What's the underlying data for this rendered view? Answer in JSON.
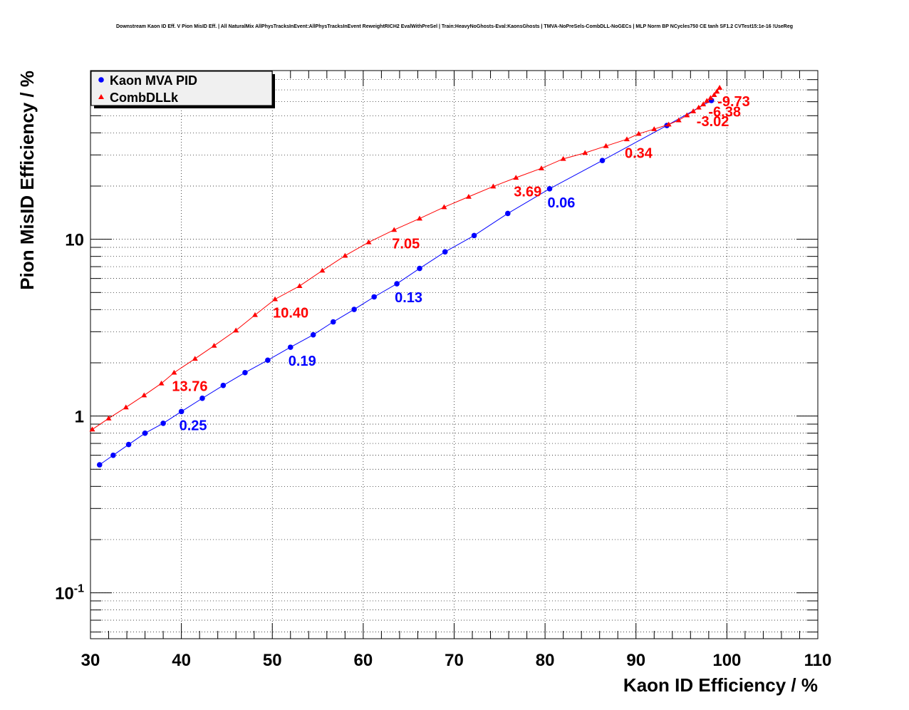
{
  "chart_data": {
    "type": "scatter",
    "title": "Downstream Kaon ID Eff. V Pion MisID Eff. | All NaturalMix AllPhysTracksInEvent:AllPhysTracksInEvent ReweightRICH2 EvalWithPreSel | Train:HeavyNoGhosts-Eval:KaonsGhosts | TMVA-NoPreSels-CombDLL-NoGECs | MLP Norm BP NCycles750 CE tanh SF1.2 CVTest15:1e-16 !UseReg",
    "xlabel": "Kaon ID Efficiency / %",
    "ylabel": "Pion MisID Efficiency / %",
    "xlim": [
      30,
      110
    ],
    "ylim": [
      0.055,
      90
    ],
    "ylog": true,
    "grid": true,
    "legend_position": "top-left",
    "x_ticks": [
      30,
      40,
      50,
      60,
      70,
      80,
      90,
      100,
      110
    ],
    "y_ticks": [
      {
        "value": 0.1,
        "base": "10",
        "exp": "-1"
      },
      {
        "value": 1,
        "base": "1",
        "exp": ""
      },
      {
        "value": 10,
        "base": "10",
        "exp": ""
      }
    ],
    "series": [
      {
        "name": "Kaon MVA PID",
        "color": "#0000ff",
        "marker": "circle",
        "points": [
          [
            31.0,
            0.53
          ],
          [
            32.5,
            0.6
          ],
          [
            34.2,
            0.69
          ],
          [
            36.0,
            0.8
          ],
          [
            38.0,
            0.91
          ],
          [
            40.0,
            1.06
          ],
          [
            42.3,
            1.26
          ],
          [
            44.6,
            1.49
          ],
          [
            47.0,
            1.76
          ],
          [
            49.5,
            2.07
          ],
          [
            52.0,
            2.45
          ],
          [
            54.5,
            2.88
          ],
          [
            56.7,
            3.41
          ],
          [
            59.0,
            4.01
          ],
          [
            61.2,
            4.72
          ],
          [
            63.7,
            5.6
          ],
          [
            66.2,
            6.84
          ],
          [
            69.0,
            8.49
          ],
          [
            72.2,
            10.5
          ],
          [
            75.9,
            14.0
          ],
          [
            80.5,
            19.3
          ],
          [
            86.3,
            27.9
          ],
          [
            93.4,
            44.0
          ],
          [
            98.3,
            61.0
          ]
        ],
        "labels": [
          {
            "x": 40.0,
            "y": 1.06,
            "text": "0.25"
          },
          {
            "x": 52.0,
            "y": 2.45,
            "text": "0.19"
          },
          {
            "x": 63.7,
            "y": 5.6,
            "text": "0.13"
          },
          {
            "x": 80.5,
            "y": 19.3,
            "text": "0.06"
          }
        ]
      },
      {
        "name": "CombDLLk",
        "color": "#ff0000",
        "marker": "triangle",
        "points": [
          [
            30.2,
            0.84
          ],
          [
            32.0,
            0.97
          ],
          [
            33.9,
            1.12
          ],
          [
            35.9,
            1.31
          ],
          [
            37.8,
            1.53
          ],
          [
            39.2,
            1.76
          ],
          [
            41.5,
            2.11
          ],
          [
            43.6,
            2.5
          ],
          [
            46.0,
            3.05
          ],
          [
            48.1,
            3.73
          ],
          [
            50.3,
            4.58
          ],
          [
            53.0,
            5.44
          ],
          [
            55.5,
            6.65
          ],
          [
            58.0,
            8.07
          ],
          [
            60.6,
            9.62
          ],
          [
            63.4,
            11.3
          ],
          [
            66.2,
            13.1
          ],
          [
            68.9,
            15.2
          ],
          [
            71.6,
            17.4
          ],
          [
            74.3,
            19.9
          ],
          [
            76.8,
            22.3
          ],
          [
            79.6,
            25.2
          ],
          [
            82.0,
            28.5
          ],
          [
            84.4,
            30.8
          ],
          [
            86.7,
            33.7
          ],
          [
            89.0,
            36.8
          ],
          [
            90.3,
            39.5
          ],
          [
            92.0,
            42.0
          ],
          [
            93.6,
            44.6
          ],
          [
            94.7,
            47.1
          ],
          [
            95.6,
            50.3
          ],
          [
            96.3,
            53.0
          ],
          [
            96.9,
            55.6
          ],
          [
            97.4,
            58.0
          ],
          [
            97.8,
            60.7
          ],
          [
            98.2,
            63.0
          ],
          [
            98.6,
            65.5
          ],
          [
            98.9,
            68.5
          ],
          [
            99.2,
            72.0
          ]
        ],
        "labels": [
          {
            "x": 39.2,
            "y": 1.76,
            "text": "13.76"
          },
          {
            "x": 50.3,
            "y": 4.58,
            "text": "10.40"
          },
          {
            "x": 63.4,
            "y": 11.3,
            "text": "7.05"
          },
          {
            "x": 76.8,
            "y": 22.3,
            "text": "3.69"
          },
          {
            "x": 89.0,
            "y": 36.8,
            "text": "0.34"
          },
          {
            "x": 96.9,
            "y": 55.6,
            "text": "-3.02"
          },
          {
            "x": 98.2,
            "y": 63.0,
            "text": "-6.38"
          },
          {
            "x": 99.2,
            "y": 72.0,
            "text": "-9.73"
          }
        ]
      }
    ]
  }
}
